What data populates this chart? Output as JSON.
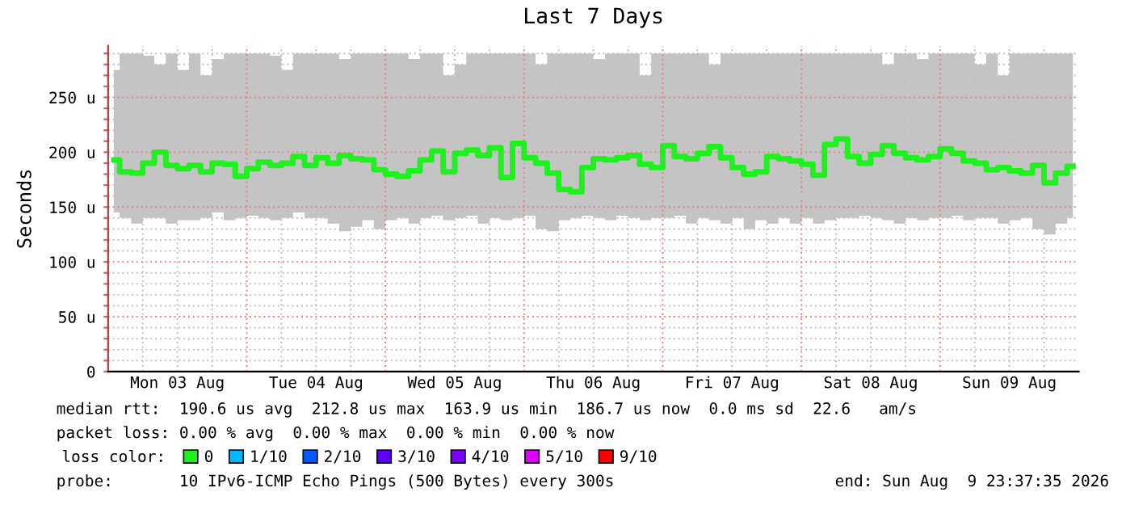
{
  "chart_data": {
    "type": "step",
    "title": "Last 7 Days",
    "ylabel": "Seconds",
    "legend_title": "loss color:",
    "legend": "bottom",
    "grid": true,
    "marker": "none",
    "xlim": [
      "2026-08-03T00:00",
      "2026-08-10T00:00"
    ],
    "xticks": [
      {
        "value": "2026-08-03T00:00",
        "label": null
      },
      {
        "value": "2026-08-03T06:00",
        "label": null
      },
      {
        "value": "2026-08-03T12:00",
        "label": "Mon 03 Aug"
      },
      {
        "value": "2026-08-03T18:00",
        "label": null
      },
      {
        "value": "2026-08-04T00:00",
        "label": null
      },
      {
        "value": "2026-08-04T06:00",
        "label": null
      },
      {
        "value": "2026-08-04T12:00",
        "label": "Tue 04 Aug"
      },
      {
        "value": "2026-08-04T18:00",
        "label": null
      },
      {
        "value": "2026-08-05T00:00",
        "label": null
      },
      {
        "value": "2026-08-05T06:00",
        "label": null
      },
      {
        "value": "2026-08-05T12:00",
        "label": "Wed 05 Aug"
      },
      {
        "value": "2026-08-05T18:00",
        "label": null
      },
      {
        "value": "2026-08-06T00:00",
        "label": null
      },
      {
        "value": "2026-08-06T06:00",
        "label": null
      },
      {
        "value": "2026-08-06T12:00",
        "label": "Thu 06 Aug"
      },
      {
        "value": "2026-08-06T18:00",
        "label": null
      },
      {
        "value": "2026-08-07T00:00",
        "label": null
      },
      {
        "value": "2026-08-07T06:00",
        "label": null
      },
      {
        "value": "2026-08-07T12:00",
        "label": "Fri 07 Aug"
      },
      {
        "value": "2026-08-07T18:00",
        "label": null
      },
      {
        "value": "2026-08-08T00:00",
        "label": null
      },
      {
        "value": "2026-08-08T06:00",
        "label": null
      },
      {
        "value": "2026-08-08T12:00",
        "label": "Sat 08 Aug"
      },
      {
        "value": "2026-08-08T18:00",
        "label": null
      },
      {
        "value": "2026-08-09T00:00",
        "label": null
      },
      {
        "value": "2026-08-09T06:00",
        "label": null
      },
      {
        "value": "2026-08-09T12:00",
        "label": "Sun 09 Aug"
      },
      {
        "value": "2026-08-09T18:00",
        "label": null
      }
    ],
    "ylim": [
      0,
      297
    ],
    "yticks": [
      {
        "value": 0,
        "label": "0"
      },
      {
        "value": 10,
        "label": null
      },
      {
        "value": 20,
        "label": null
      },
      {
        "value": 30,
        "label": null
      },
      {
        "value": 40,
        "label": null
      },
      {
        "value": 50,
        "label": "50 u"
      },
      {
        "value": 60,
        "label": null
      },
      {
        "value": 70,
        "label": null
      },
      {
        "value": 80,
        "label": null
      },
      {
        "value": 90,
        "label": null
      },
      {
        "value": 100,
        "label": "100 u"
      },
      {
        "value": 110,
        "label": null
      },
      {
        "value": 120,
        "label": null
      },
      {
        "value": 130,
        "label": null
      },
      {
        "value": 140,
        "label": null
      },
      {
        "value": 150,
        "label": "150 u"
      },
      {
        "value": 160,
        "label": null
      },
      {
        "value": 170,
        "label": null
      },
      {
        "value": 180,
        "label": null
      },
      {
        "value": 190,
        "label": null
      },
      {
        "value": 200,
        "label": "200 u"
      },
      {
        "value": 210,
        "label": null
      },
      {
        "value": 220,
        "label": null
      },
      {
        "value": 230,
        "label": null
      },
      {
        "value": 240,
        "label": null
      },
      {
        "value": 250,
        "label": "250 u"
      },
      {
        "value": 260,
        "label": null
      },
      {
        "value": 270,
        "label": null
      },
      {
        "value": 280,
        "label": null
      },
      {
        "value": 290,
        "label": null
      }
    ],
    "annotations": [
      "median rtt:  190.6 us avg  212.8 us max  163.9 us min  186.7 us now  0.0 ms sd  22.6   am/s",
      "packet loss: 0.00 % avg  0.00 % max  0.00 % min  0.00 % now",
      "probe:       10 IPv6-ICMP Echo Pings (500 Bytes) every 300s",
      "end: Sun Aug  9 23:37:35 2026"
    ],
    "series": [
      {
        "name": "0",
        "color": "#20f020",
        "x": [
          "2026-08-03T01:00",
          "2026-08-03T03:00",
          "2026-08-03T05:00",
          "2026-08-03T07:00",
          "2026-08-03T09:00",
          "2026-08-03T11:00",
          "2026-08-03T13:00",
          "2026-08-03T15:00",
          "2026-08-03T17:00",
          "2026-08-03T19:00",
          "2026-08-03T21:00",
          "2026-08-03T23:00",
          "2026-08-04T01:00",
          "2026-08-04T03:00",
          "2026-08-04T05:00",
          "2026-08-04T07:00",
          "2026-08-04T09:00",
          "2026-08-04T11:00",
          "2026-08-04T13:00",
          "2026-08-04T15:00",
          "2026-08-04T17:00",
          "2026-08-04T19:00",
          "2026-08-04T21:00",
          "2026-08-04T23:00",
          "2026-08-05T01:00",
          "2026-08-05T03:00",
          "2026-08-05T05:00",
          "2026-08-05T07:00",
          "2026-08-05T09:00",
          "2026-08-05T11:00",
          "2026-08-05T13:00",
          "2026-08-05T15:00",
          "2026-08-05T17:00",
          "2026-08-05T19:00",
          "2026-08-05T21:00",
          "2026-08-05T23:00",
          "2026-08-06T01:00",
          "2026-08-06T03:00",
          "2026-08-06T05:00",
          "2026-08-06T07:00",
          "2026-08-06T09:00",
          "2026-08-06T11:00",
          "2026-08-06T13:00",
          "2026-08-06T15:00",
          "2026-08-06T17:00",
          "2026-08-06T19:00",
          "2026-08-06T21:00",
          "2026-08-06T23:00",
          "2026-08-07T01:00",
          "2026-08-07T03:00",
          "2026-08-07T05:00",
          "2026-08-07T07:00",
          "2026-08-07T09:00",
          "2026-08-07T11:00",
          "2026-08-07T13:00",
          "2026-08-07T15:00",
          "2026-08-07T17:00",
          "2026-08-07T19:00",
          "2026-08-07T21:00",
          "2026-08-07T23:00",
          "2026-08-08T01:00",
          "2026-08-08T03:00",
          "2026-08-08T05:00",
          "2026-08-08T07:00",
          "2026-08-08T09:00",
          "2026-08-08T11:00",
          "2026-08-08T13:00",
          "2026-08-08T15:00",
          "2026-08-08T17:00",
          "2026-08-08T19:00",
          "2026-08-08T21:00",
          "2026-08-08T23:00",
          "2026-08-09T01:00",
          "2026-08-09T03:00",
          "2026-08-09T05:00",
          "2026-08-09T07:00",
          "2026-08-09T09:00",
          "2026-08-09T11:00",
          "2026-08-09T13:00",
          "2026-08-09T15:00",
          "2026-08-09T17:00",
          "2026-08-09T19:00",
          "2026-08-09T21:00",
          "2026-08-09T23:00"
        ],
        "values": [
          193,
          182,
          181,
          190,
          200,
          188,
          185,
          188,
          182,
          190,
          189,
          178,
          185,
          191,
          188,
          190,
          196,
          188,
          195,
          190,
          197,
          194,
          193,
          184,
          180,
          178,
          183,
          193,
          201,
          182,
          199,
          202,
          197,
          204,
          177,
          208,
          195,
          190,
          181,
          166,
          164,
          186,
          194,
          193,
          195,
          197,
          189,
          186,
          206,
          196,
          194,
          199,
          205,
          195,
          186,
          180,
          182,
          196,
          194,
          192,
          189,
          179,
          207,
          212,
          196,
          190,
          198,
          206,
          199,
          195,
          193,
          196,
          203,
          199,
          192,
          190,
          184,
          186,
          183,
          181,
          188,
          172,
          181,
          187
        ],
        "lower": [
          145,
          140,
          135,
          140,
          140,
          135,
          138,
          138,
          140,
          145,
          138,
          140,
          142,
          140,
          138,
          140,
          145,
          140,
          140,
          135,
          128,
          132,
          138,
          130,
          138,
          140,
          135,
          140,
          142,
          138,
          140,
          142,
          135,
          140,
          138,
          140,
          142,
          130,
          128,
          138,
          140,
          142,
          140,
          138,
          142,
          140,
          138,
          140,
          140,
          142,
          135,
          140,
          138,
          135,
          140,
          130,
          138,
          135,
          140,
          135,
          140,
          135,
          138,
          140,
          140,
          142,
          140,
          138,
          135,
          140,
          138,
          140,
          140,
          142,
          138,
          140,
          140,
          135,
          138,
          140,
          130,
          125,
          135,
          140
        ],
        "upper": [
          275,
          290,
          290,
          288,
          280,
          290,
          275,
          290,
          270,
          285,
          290,
          290,
          290,
          290,
          288,
          275,
          290,
          290,
          290,
          290,
          285,
          290,
          290,
          290,
          290,
          290,
          285,
          290,
          290,
          270,
          280,
          290,
          290,
          290,
          290,
          290,
          290,
          280,
          290,
          290,
          290,
          290,
          285,
          290,
          290,
          290,
          270,
          290,
          290,
          290,
          290,
          290,
          280,
          290,
          290,
          290,
          290,
          290,
          290,
          290,
          290,
          290,
          290,
          290,
          290,
          290,
          290,
          280,
          290,
          290,
          285,
          290,
          290,
          290,
          290,
          280,
          290,
          270,
          290,
          290,
          290,
          290,
          290,
          290
        ]
      },
      {
        "name": "1/10",
        "color": "#00b8ff"
      },
      {
        "name": "2/10",
        "color": "#0059ff"
      },
      {
        "name": "3/10",
        "color": "#5e00ff"
      },
      {
        "name": "4/10",
        "color": "#7e00ff"
      },
      {
        "name": "5/10",
        "color": "#dd00ff"
      },
      {
        "name": "9/10",
        "color": "#ff0000"
      }
    ]
  }
}
